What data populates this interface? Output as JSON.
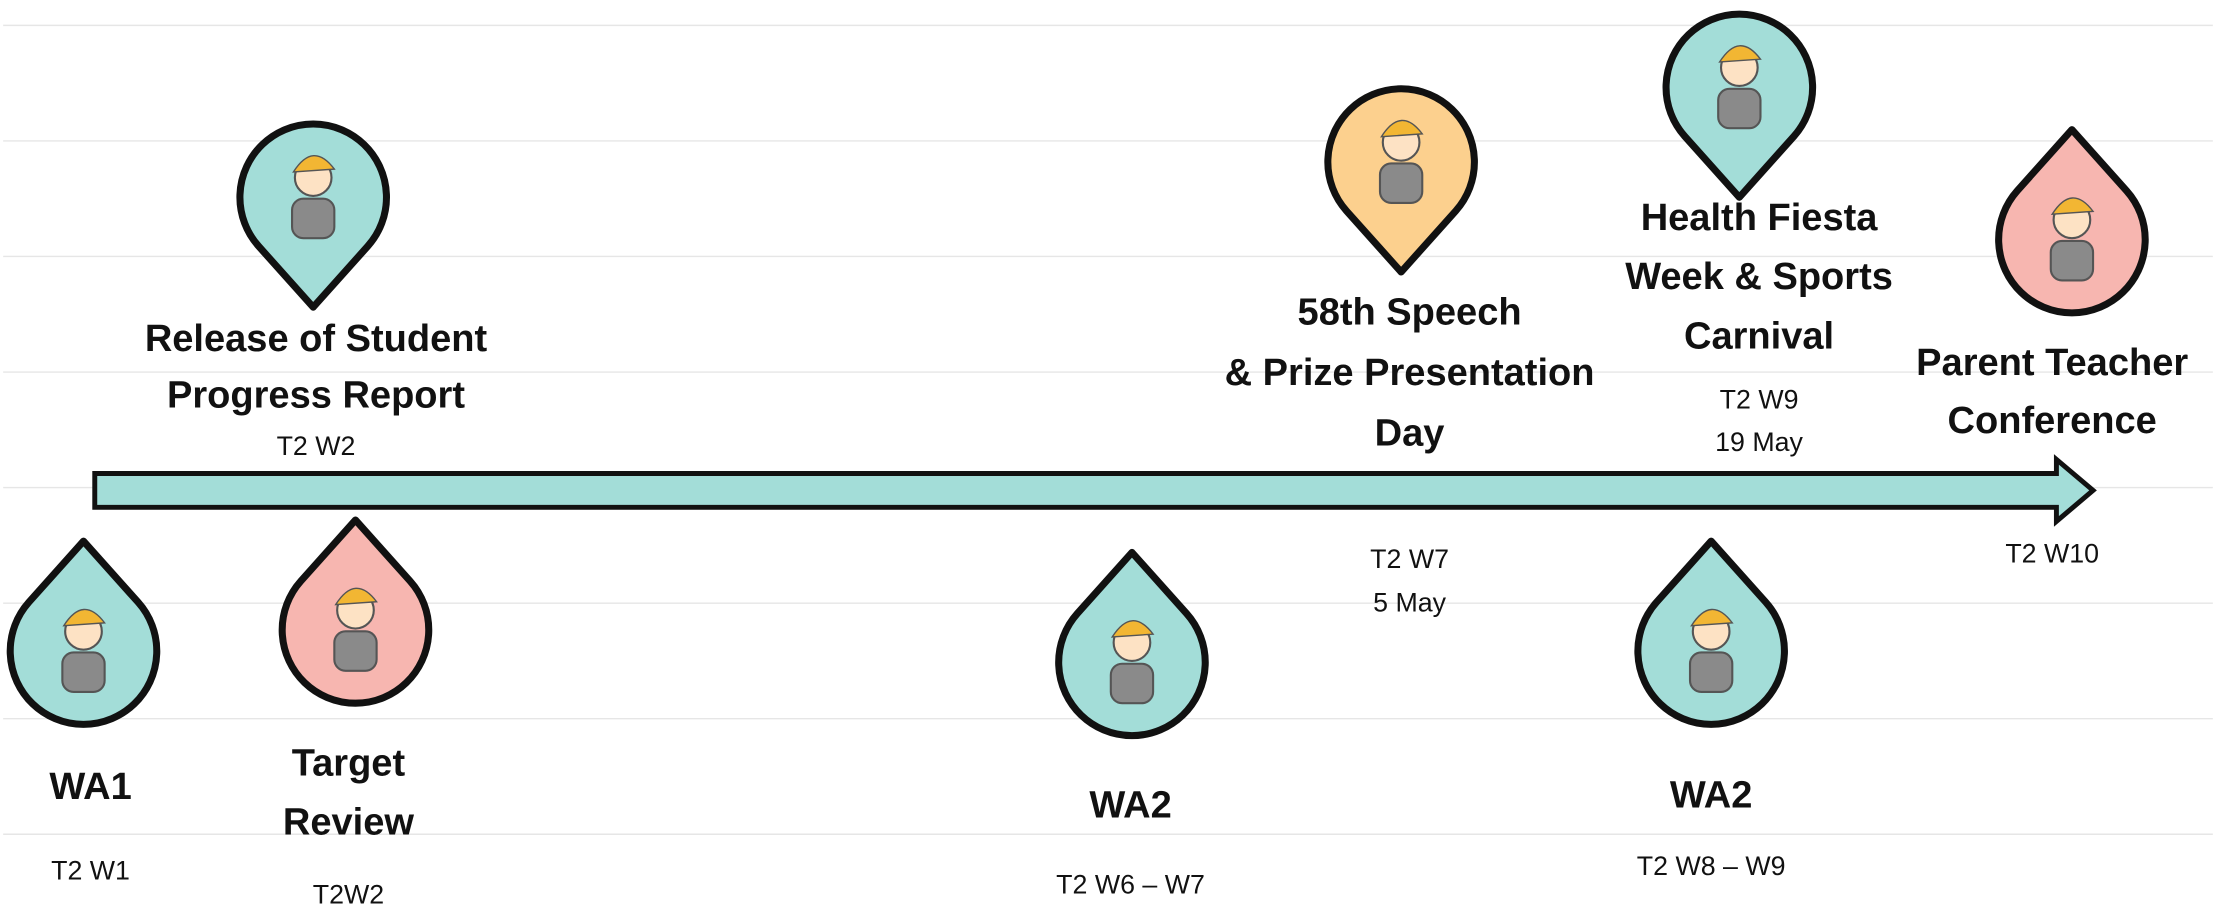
{
  "timeline": {
    "events": [
      {
        "title": [
          "Release of Student",
          "Progress Report"
        ],
        "date": [
          "T2 W2"
        ]
      },
      {
        "title": [
          "WA1"
        ],
        "date": [
          "T2 W1"
        ]
      },
      {
        "title": [
          "Target",
          "Review"
        ],
        "date": [
          "T2W2"
        ]
      },
      {
        "title": [
          "WA2"
        ],
        "date": [
          "T2 W6 – W7"
        ]
      },
      {
        "title": [
          "58th Speech",
          "& Prize Presentation",
          "Day"
        ],
        "date": [
          "T2 W7",
          "5 May"
        ]
      },
      {
        "title": [
          "Health Fiesta",
          "Week & Sports",
          "Carnival"
        ],
        "date": [
          "T2 W9",
          "19 May"
        ]
      },
      {
        "title": [
          "WA2"
        ],
        "date": [
          "T2 W8 – W9"
        ]
      },
      {
        "title": [
          "Parent Teacher",
          "Conference"
        ],
        "date": [
          "T2 W10"
        ]
      }
    ]
  }
}
